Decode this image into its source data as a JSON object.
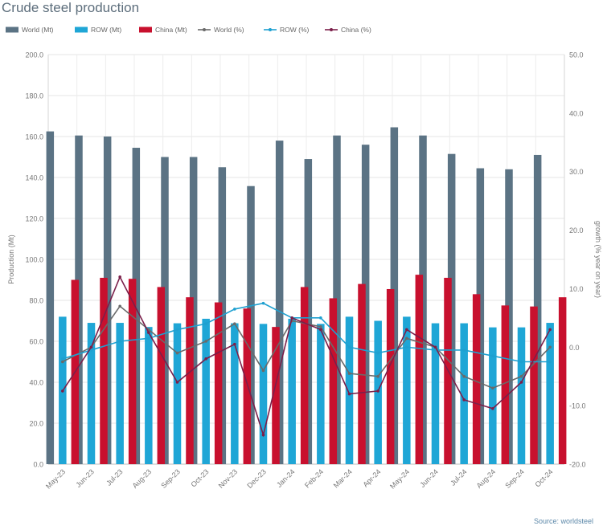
{
  "title": "Crude steel production",
  "source": "Source: worldsteel",
  "chart_data": {
    "type": "bar",
    "title": "Crude steel production",
    "categories": [
      "May-23",
      "Jun-23",
      "Jul-23",
      "Aug-23",
      "Sep-23",
      "Oct-23",
      "Nov-23",
      "Dec-23",
      "Jan-24",
      "Feb-24",
      "Mar-24",
      "Apr-24",
      "May-24",
      "Jun-24",
      "Jul-24",
      "Aug-24",
      "Sep-24",
      "Oct-24"
    ],
    "ylabel": "Production (Mt)",
    "y2label": "growth (% year on year)",
    "ylim": [
      0,
      200
    ],
    "y2lim": [
      -20,
      50
    ],
    "yticks": [
      "0.0",
      "20.0",
      "40.0",
      "60.0",
      "80.0",
      "100.0",
      "120.0",
      "140.0",
      "160.0",
      "180.0",
      "200.0"
    ],
    "y2ticks": [
      "-20.0",
      "-10.0",
      "0.0",
      "10.0",
      "20.0",
      "30.0",
      "40.0",
      "50.0"
    ],
    "grid": true,
    "legend_position": "top",
    "bar_series": [
      {
        "name": "World (Mt)",
        "color": "#5b7384",
        "values": [
          162.5,
          160.5,
          160.0,
          154.5,
          150.0,
          150.0,
          145.0,
          135.8,
          158.0,
          149.0,
          160.5,
          156.0,
          164.5,
          160.5,
          151.5,
          144.5,
          144.0,
          151.0
        ]
      },
      {
        "name": "ROW (Mt)",
        "color": "#1fa6d6",
        "values": [
          72.0,
          69.0,
          69.0,
          67.0,
          68.8,
          71.0,
          68.8,
          68.5,
          71.0,
          68.5,
          72.0,
          70.0,
          72.0,
          68.8,
          68.8,
          66.8,
          66.8,
          69.0
        ]
      },
      {
        "name": "China (Mt)",
        "color": "#c8102e",
        "values": [
          90.0,
          91.0,
          90.5,
          86.5,
          81.5,
          79.0,
          76.0,
          67.0,
          86.5,
          81.0,
          88.0,
          85.5,
          92.5,
          91.0,
          83.0,
          77.5,
          77.0,
          81.5
        ]
      }
    ],
    "line_series": [
      {
        "name": "World (%)",
        "color": "#6a6a6a",
        "values": [
          -2.5,
          0.0,
          7.0,
          3.0,
          -1.0,
          1.0,
          4.0,
          -4.0,
          4.5,
          3.5,
          -4.5,
          -5.0,
          1.5,
          0.0,
          -5.0,
          -7.0,
          -5.0,
          0.0
        ]
      },
      {
        "name": "ROW (%)",
        "color": "#1ea0d0",
        "values": [
          -2.0,
          -0.5,
          1.0,
          1.5,
          3.0,
          4.0,
          6.5,
          7.5,
          5.0,
          5.0,
          0.0,
          -1.0,
          0.0,
          -0.5,
          -0.5,
          -1.5,
          -2.5,
          -2.5
        ]
      },
      {
        "name": "China (%)",
        "color": "#7b1f4a",
        "values": [
          -7.5,
          0.0,
          12.0,
          2.5,
          -6.0,
          -2.0,
          0.5,
          -15.0,
          5.0,
          3.0,
          -8.0,
          -7.5,
          3.0,
          0.0,
          -9.0,
          -10.5,
          -6.0,
          3.0
        ]
      }
    ]
  }
}
